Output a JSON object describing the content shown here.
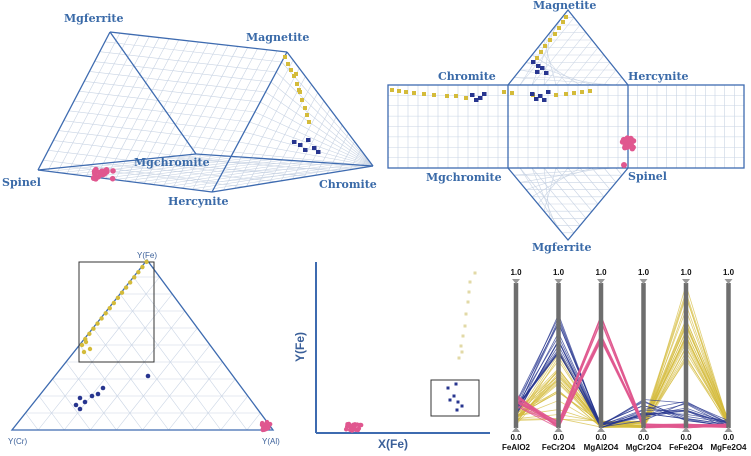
{
  "colors": {
    "edge": "#3e6bb0",
    "grid": "#c9d4e4",
    "yellow": "#d4bb3a",
    "yellow_light": "#e2d9a6",
    "navy": "#27358f",
    "pink": "#e0578f",
    "pc_axis": "#6e6e6e"
  },
  "prism": {
    "labels": {
      "mgferrite": "Mgferrite",
      "magnetite": "Magnetite",
      "spinel": "Spinel",
      "mgchromite": "Mgchromite",
      "hercynite": "Hercynite",
      "chromite": "Chromite"
    }
  },
  "net": {
    "labels": {
      "magnetite": "Magnetite",
      "chromite": "Chromite",
      "hercynite": "Hercynite",
      "mgchromite": "Mgchromite",
      "spinel": "Spinel",
      "mgferrite": "Mgferrite"
    }
  },
  "ternary": {
    "labels": {
      "top": "Y(Fe)",
      "left": "Y(Cr)",
      "right": "Y(Al)"
    }
  },
  "scatter": {
    "xlabel": "X(Fe)",
    "ylabel": "Y(Fe)"
  },
  "parallel": {
    "axes": [
      "FeAlO2",
      "FeCr2O4",
      "MgAl2O4",
      "MgCr2O4",
      "FeFe2O4",
      "MgFe2O4"
    ],
    "top_label": "1.0",
    "bottom_label": "0.0"
  }
}
